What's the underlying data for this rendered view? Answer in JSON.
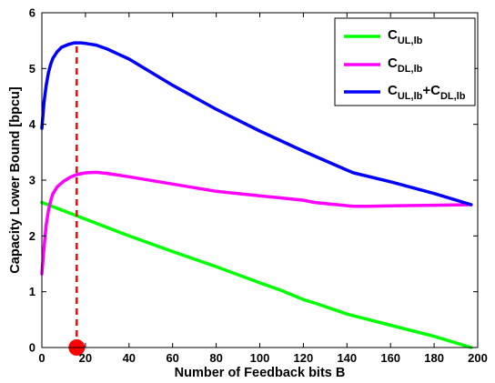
{
  "chart_data": {
    "type": "line",
    "title": "",
    "xlabel": "Number of Feedback bits B",
    "ylabel": "Capacity Lower Bound   [bpcu]",
    "xlim": [
      0,
      200
    ],
    "ylim": [
      0,
      6
    ],
    "xticks": [
      0,
      20,
      40,
      60,
      80,
      100,
      120,
      140,
      160,
      180,
      200
    ],
    "yticks": [
      0,
      1,
      2,
      3,
      4,
      5,
      6
    ],
    "grid": false,
    "legend_position": "top-right",
    "series": [
      {
        "name": "C_UL,lb",
        "legend": {
          "main": "C",
          "sub": "UL,lb"
        },
        "color": "#00ff00",
        "x": [
          0,
          20,
          40,
          60,
          80,
          100,
          110,
          120,
          125,
          140,
          160,
          180,
          197
        ],
        "y": [
          2.6,
          2.3,
          2.0,
          1.72,
          1.45,
          1.16,
          1.02,
          0.86,
          0.8,
          0.6,
          0.4,
          0.2,
          0.0
        ]
      },
      {
        "name": "C_DL,lb",
        "legend": {
          "main": "C",
          "sub": "DL,lb"
        },
        "color": "#ff00ff",
        "x": [
          0,
          1,
          2,
          3,
          4,
          5,
          7,
          10,
          13,
          16,
          20,
          25,
          30,
          40,
          60,
          80,
          100,
          110,
          120,
          125,
          130,
          143,
          150,
          160,
          180,
          197
        ],
        "y": [
          1.32,
          1.8,
          2.2,
          2.45,
          2.62,
          2.75,
          2.88,
          2.98,
          3.05,
          3.1,
          3.13,
          3.14,
          3.12,
          3.06,
          2.93,
          2.8,
          2.72,
          2.68,
          2.64,
          2.6,
          2.58,
          2.53,
          2.53,
          2.54,
          2.55,
          2.56
        ]
      },
      {
        "name": "C_UL,lb+C_DL,lb",
        "legend": {
          "main": "C",
          "sub": "UL,lb",
          "plus": "+",
          "main2": "C",
          "sub2": "DL,lb"
        },
        "color": "#0000ff",
        "x": [
          0,
          1,
          2,
          3,
          4,
          5,
          7,
          9,
          12,
          15,
          16,
          18,
          20,
          25,
          30,
          40,
          60,
          80,
          100,
          120,
          140,
          143,
          160,
          180,
          197
        ],
        "y": [
          3.93,
          4.4,
          4.7,
          4.92,
          5.07,
          5.18,
          5.3,
          5.38,
          5.43,
          5.46,
          5.46,
          5.46,
          5.45,
          5.42,
          5.35,
          5.17,
          4.7,
          4.27,
          3.88,
          3.52,
          3.18,
          3.13,
          2.97,
          2.76,
          2.56
        ]
      }
    ],
    "annotations": [
      {
        "type": "vertical-dashed-line",
        "x": 16,
        "y_from": 0,
        "y_to": 5.46,
        "color": "#ff0000"
      },
      {
        "type": "marker",
        "shape": "circle",
        "x": 16,
        "y": 0,
        "color": "#ff0000"
      }
    ]
  }
}
